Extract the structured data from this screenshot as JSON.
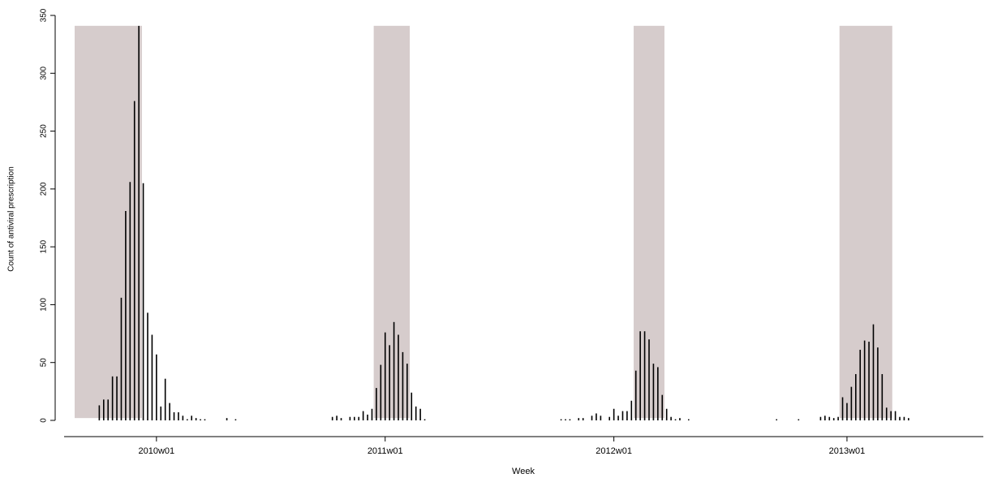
{
  "chart_data": {
    "type": "spike",
    "xlabel": "Week",
    "ylabel": "Count of antiviral prescription",
    "x": [
      -13,
      -12,
      -11,
      -10,
      -9,
      -8,
      -7,
      -6,
      -5,
      -4,
      -3,
      -2,
      -1,
      0,
      1,
      2,
      3,
      4,
      5,
      6,
      7,
      8,
      9,
      10,
      11,
      16,
      18,
      40,
      41,
      42,
      44,
      45,
      46,
      47,
      48,
      49,
      50,
      51,
      52,
      53,
      54,
      55,
      56,
      57,
      58,
      59,
      60,
      61,
      92,
      93,
      94,
      96,
      97,
      99,
      100,
      101,
      103,
      104,
      105,
      106,
      107,
      108,
      109,
      110,
      111,
      112,
      113,
      114,
      115,
      116,
      117,
      118,
      119,
      121,
      141,
      146,
      151,
      152,
      153,
      154,
      155,
      156,
      157,
      158,
      159,
      160,
      161,
      162,
      163,
      164,
      165,
      166,
      167,
      168,
      169,
      170,
      171
    ],
    "values": [
      13,
      18,
      18,
      38,
      38,
      106,
      181,
      206,
      276,
      341,
      205,
      93,
      74,
      57,
      12,
      36,
      15,
      7,
      7,
      4,
      1,
      4,
      2,
      1,
      1,
      2,
      1,
      3,
      4,
      2,
      3,
      3,
      3,
      8,
      5,
      10,
      28,
      48,
      76,
      65,
      85,
      74,
      59,
      49,
      24,
      12,
      10,
      1,
      1,
      1,
      1,
      2,
      2,
      4,
      6,
      4,
      3,
      10,
      4,
      8,
      8,
      17,
      43,
      77,
      77,
      70,
      49,
      46,
      22,
      10,
      3,
      1,
      2,
      1,
      1,
      1,
      3,
      4,
      3,
      2,
      3,
      20,
      15,
      29,
      40,
      61,
      69,
      68,
      83,
      63,
      40,
      11,
      8,
      8,
      3,
      3,
      2
    ],
    "color": "#000000",
    "shaded_regions": [
      [
        -18.6,
        -3.3
      ],
      [
        49.4,
        57.6
      ],
      [
        108.5,
        115.5
      ],
      [
        155.3,
        167.3
      ]
    ],
    "shade_ylim": [
      2,
      341
    ],
    "shade_color": "#d6cccc",
    "xlim": [
      -21,
      188
    ],
    "xticks": [
      {
        "value": 0,
        "label": "2010w01"
      },
      {
        "value": 52,
        "label": "2011w01"
      },
      {
        "value": 104,
        "label": "2012w01"
      },
      {
        "value": 157,
        "label": "2013w01"
      }
    ],
    "ylim": [
      0,
      350
    ],
    "yticks": [
      0,
      50,
      100,
      150,
      200,
      250,
      300,
      350
    ]
  }
}
